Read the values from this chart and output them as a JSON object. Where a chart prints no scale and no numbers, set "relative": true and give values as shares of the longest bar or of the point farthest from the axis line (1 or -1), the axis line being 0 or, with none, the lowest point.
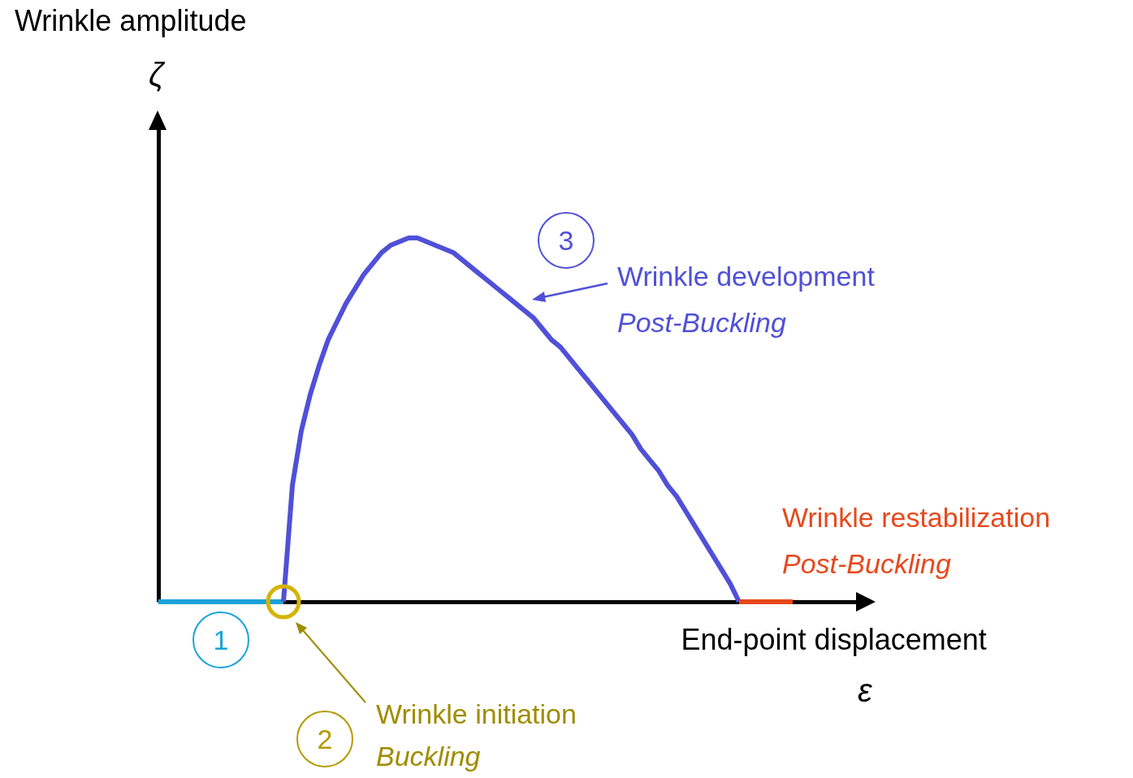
{
  "chart_data": {
    "type": "line",
    "relative": true,
    "xlabel": "End-point displacement",
    "categories": [
      null,
      null,
      null,
      null,
      null,
      null,
      null,
      null,
      null,
      null,
      null,
      null,
      null,
      null,
      null,
      null,
      null,
      null,
      null,
      null,
      null,
      null,
      null,
      null,
      null,
      null,
      null,
      null,
      null,
      null,
      null,
      null,
      null,
      null,
      null,
      null,
      null,
      null,
      null,
      null,
      null,
      null,
      null,
      null,
      null,
      null,
      null,
      null,
      null,
      null,
      null,
      null,
      null,
      null,
      null,
      null,
      null,
      null,
      null,
      null,
      null,
      null,
      null,
      null,
      null,
      null,
      null,
      null,
      null,
      null,
      null,
      null,
      null,
      null,
      null,
      null,
      null,
      null,
      null,
      null
    ],
    "series": [
      {
        "color": "#1aa3d9",
        "values": [
          0,
          0,
          0,
          0,
          0,
          0,
          0,
          0,
          0,
          0,
          0,
          0,
          0,
          0,
          0,
          null,
          null,
          null,
          null,
          null,
          null,
          null,
          null,
          null,
          null,
          null,
          null,
          null,
          null,
          null,
          null,
          null,
          null,
          null,
          null,
          null,
          null,
          null,
          null,
          null,
          null,
          null,
          null,
          null,
          null,
          null,
          null,
          null,
          null,
          null,
          null,
          null,
          null,
          null,
          null,
          null,
          null,
          null,
          null,
          null,
          null,
          null,
          null,
          null,
          null,
          null,
          null,
          null,
          null,
          null,
          null,
          null,
          null,
          null,
          null,
          null,
          null,
          null,
          null,
          null
        ]
      },
      {
        "color": "#5050d8",
        "values": [
          null,
          null,
          null,
          null,
          null,
          null,
          null,
          null,
          null,
          null,
          null,
          null,
          null,
          null,
          0,
          0.32,
          0.47,
          0.57,
          0.65,
          0.72,
          0.77,
          0.82,
          0.86,
          0.9,
          0.93,
          0.96,
          0.98,
          0.99,
          1,
          1,
          0.99,
          0.98,
          0.97,
          0.96,
          0.94,
          0.92,
          0.9,
          0.88,
          0.86,
          0.84,
          0.82,
          0.8,
          0.78,
          0.75,
          0.72,
          0.7,
          0.67,
          0.64,
          0.61,
          0.58,
          0.55,
          0.52,
          0.49,
          0.46,
          0.42,
          0.39,
          0.36,
          0.32,
          0.29,
          0.25,
          0.21,
          0.17,
          0.13,
          0.09,
          0.05,
          0,
          null,
          null,
          null,
          null,
          null,
          null,
          null,
          null,
          null,
          null,
          null,
          null,
          null,
          null
        ]
      },
      {
        "color": "#e8481c",
        "values": [
          null,
          null,
          null,
          null,
          null,
          null,
          null,
          null,
          null,
          null,
          null,
          null,
          null,
          null,
          null,
          null,
          null,
          null,
          null,
          null,
          null,
          null,
          null,
          null,
          null,
          null,
          null,
          null,
          null,
          null,
          null,
          null,
          null,
          null,
          null,
          null,
          null,
          null,
          null,
          null,
          null,
          null,
          null,
          null,
          null,
          null,
          null,
          null,
          null,
          null,
          null,
          null,
          null,
          null,
          null,
          null,
          null,
          null,
          null,
          null,
          null,
          null,
          null,
          null,
          null,
          0,
          0,
          0,
          0,
          0,
          0,
          0,
          null,
          null,
          null,
          null,
          null,
          null,
          null,
          null
        ]
      }
    ],
    "annotations": [
      "Wrinkle amplitude",
      "ζ",
      "ε",
      "1",
      "2",
      "3",
      "Wrinkle development",
      "Post-Buckling",
      "Wrinkle restabilization",
      "Post-Buckling",
      "Wrinkle initiation",
      "Buckling"
    ]
  }
}
